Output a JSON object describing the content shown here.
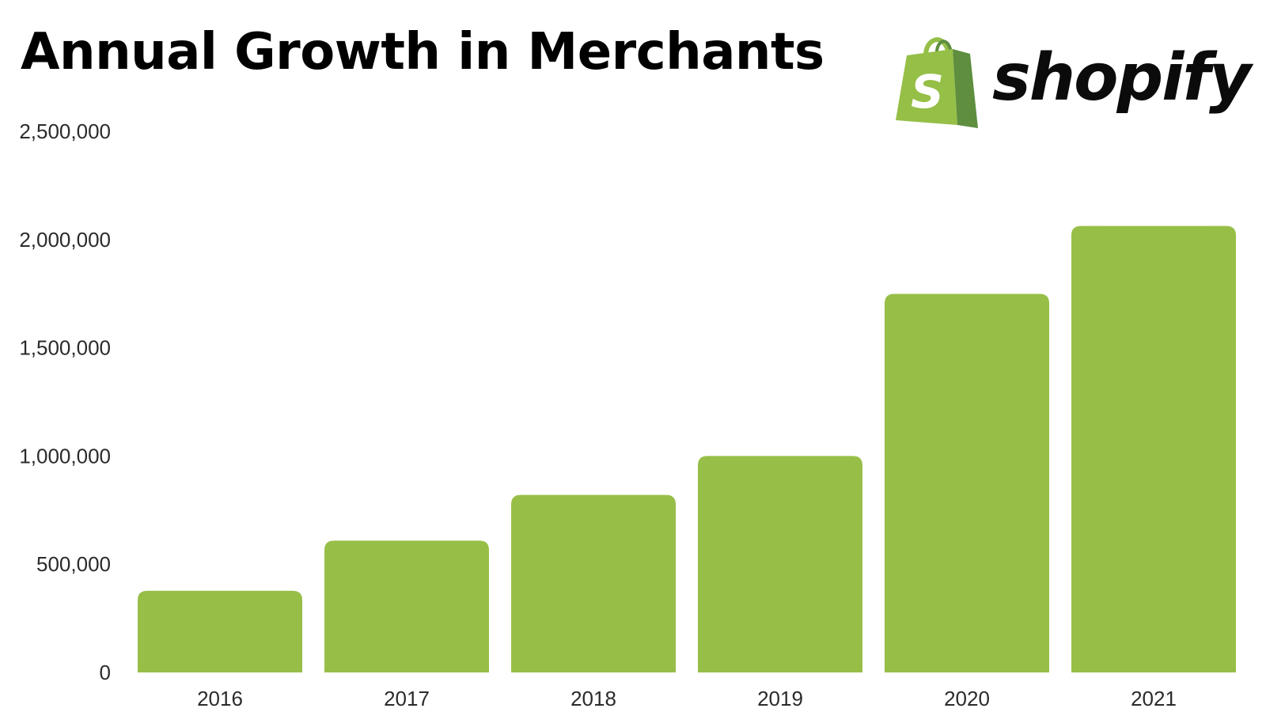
{
  "logo": {
    "wordmark": "shopify",
    "bag_letter": "S",
    "colors": {
      "bag_light": "#95bf47",
      "bag_dark": "#5e8e3e",
      "text": "#0b0b0b"
    }
  },
  "colors": {
    "bar": "#97bf48",
    "text": "#000000",
    "tick_text": "#2b2b2b"
  },
  "chart_data": {
    "type": "bar",
    "title": "Annual Growth in Merchants",
    "xlabel": "",
    "ylabel": "",
    "categories": [
      "2016",
      "2017",
      "2018",
      "2019",
      "2020",
      "2021"
    ],
    "values": [
      377500,
      609000,
      820000,
      1000000,
      1749000,
      2063000
    ],
    "ylim": [
      0,
      2500000
    ],
    "yticks": [
      0,
      500000,
      1000000,
      1500000,
      2000000,
      2500000
    ],
    "ytick_labels": [
      "0",
      "500,000",
      "1,000,000",
      "1,500,000",
      "2,000,000",
      "2,500,000"
    ],
    "grid": false,
    "legend": "none"
  }
}
